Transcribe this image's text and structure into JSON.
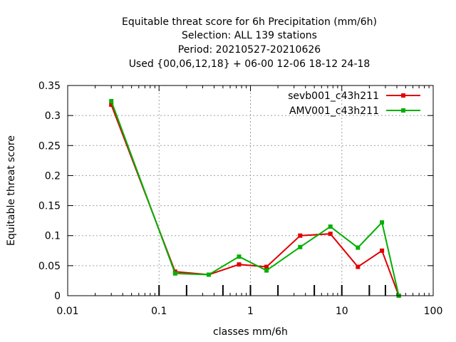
{
  "chart_data": {
    "type": "line",
    "title_lines": [
      "Equitable threat score  for 6h Precipitation (mm/6h)",
      "Selection: ALL    139 stations",
      "Period: 20210527-20210626",
      "Used {00,06,12,18} + 06-00 12-06 18-12 24-18"
    ],
    "xlabel": "classes mm/6h",
    "ylabel": "Equitable threat score",
    "x_scale": "log",
    "xlim": [
      0.01,
      100
    ],
    "ylim": [
      0,
      0.35
    ],
    "x_ticks": [
      0.01,
      0.1,
      1,
      10,
      100
    ],
    "x_tick_labels": [
      "0.01",
      "0.1",
      "1",
      "10",
      "100"
    ],
    "y_ticks": [
      0,
      0.05,
      0.1,
      0.15,
      0.2,
      0.25,
      0.3,
      0.35
    ],
    "y_tick_labels": [
      "0",
      "0.05",
      "0.1",
      "0.15",
      "0.2",
      "0.25",
      "0.3",
      "0.35"
    ],
    "grid": true,
    "legend_position": "top-right",
    "class_markers": [
      0.1,
      0.2,
      0.5,
      1,
      2,
      5,
      10,
      20,
      30
    ],
    "series": [
      {
        "name": "sevb001_c43h211",
        "color": "#e00000",
        "x": [
          0.03,
          0.15,
          0.35,
          0.75,
          1.5,
          3.5,
          7.5,
          15,
          27.5,
          42
        ],
        "y": [
          0.318,
          0.04,
          0.035,
          0.052,
          0.048,
          0.1,
          0.103,
          0.048,
          0.075,
          0.0
        ]
      },
      {
        "name": "AMV001_c43h211",
        "color": "#00b000",
        "x": [
          0.03,
          0.15,
          0.35,
          0.75,
          1.5,
          3.5,
          7.5,
          15,
          27.5,
          42
        ],
        "y": [
          0.324,
          0.037,
          0.035,
          0.065,
          0.042,
          0.081,
          0.115,
          0.08,
          0.122,
          0.0
        ]
      }
    ]
  }
}
